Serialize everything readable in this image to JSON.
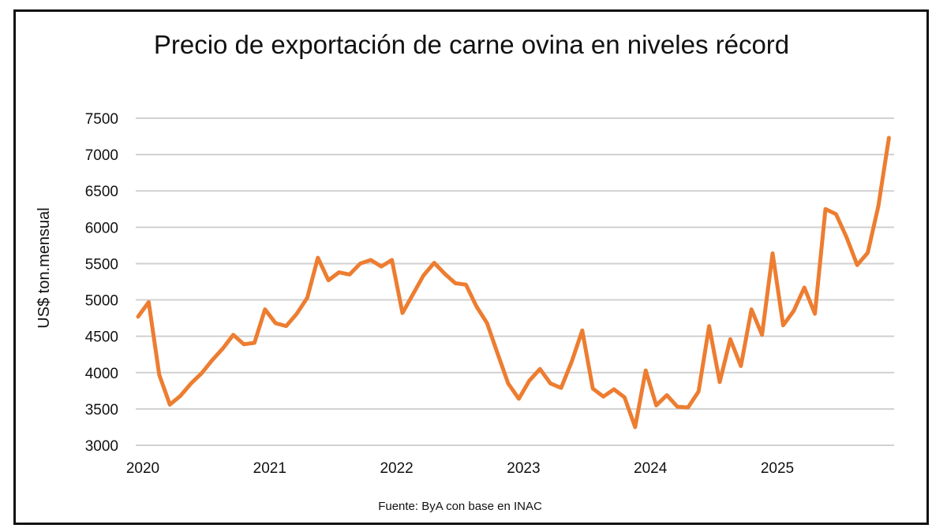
{
  "chart_data": {
    "type": "line",
    "title": "Precio de exportación de carne ovina en niveles récord",
    "ylabel": "US$ ton.mensual",
    "xlabel": "",
    "source": "Fuente: ByA con base en INAC",
    "ylim": [
      3000,
      7500
    ],
    "yticks": [
      "3000",
      "3500",
      "4000",
      "4500",
      "5000",
      "5500",
      "6000",
      "6500",
      "7000",
      "7500"
    ],
    "xticks": [
      "2020",
      "2021",
      "2022",
      "2023",
      "2024",
      "2025"
    ],
    "x_start": "2020-01",
    "frequency": "monthly",
    "grid": "horizontal",
    "line_color": "#ED7D31",
    "values": [
      4770,
      4970,
      3970,
      3560,
      3680,
      3850,
      3990,
      4170,
      4330,
      4520,
      4390,
      4410,
      4870,
      4680,
      4640,
      4810,
      5030,
      5580,
      5270,
      5380,
      5350,
      5500,
      5550,
      5460,
      5550,
      4820,
      5080,
      5340,
      5510,
      5360,
      5230,
      5210,
      4910,
      4680,
      4260,
      3850,
      3640,
      3890,
      4050,
      3850,
      3790,
      4150,
      4580,
      3780,
      3670,
      3770,
      3660,
      3250,
      4030,
      3550,
      3690,
      3530,
      3520,
      3740,
      4640,
      3870,
      4460,
      4090,
      4870,
      4520,
      5640,
      4650,
      4850,
      5170,
      4810,
      6250,
      6180,
      5860,
      5480,
      5650,
      6290,
      7230
    ]
  }
}
